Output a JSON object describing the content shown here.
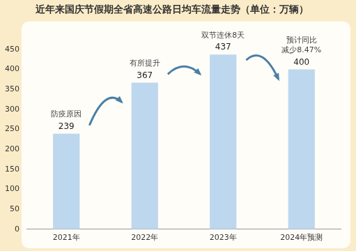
{
  "chart_data": {
    "type": "bar",
    "title": "近年来国庆节假期全省高速公路日均车流量走势（单位：万辆）",
    "categories": [
      "2021年",
      "2022年",
      "2023年",
      "2024年预测"
    ],
    "values": [
      239,
      367,
      437,
      400
    ],
    "color": "#bdd7ee",
    "ylim": [
      0,
      450
    ],
    "yticks": [
      0,
      50,
      100,
      150,
      200,
      250,
      300,
      350,
      400,
      450
    ],
    "grid": false,
    "data_labels": true,
    "annotations": [
      {
        "category": "2021年",
        "text": [
          "防疫原因"
        ]
      },
      {
        "category": "2022年",
        "text": [
          "有所提升"
        ]
      },
      {
        "category": "2023年",
        "text": [
          "双节连休8天"
        ]
      },
      {
        "category": "2024年预测",
        "text": [
          "预计同比",
          "减少8.47%"
        ]
      }
    ]
  }
}
